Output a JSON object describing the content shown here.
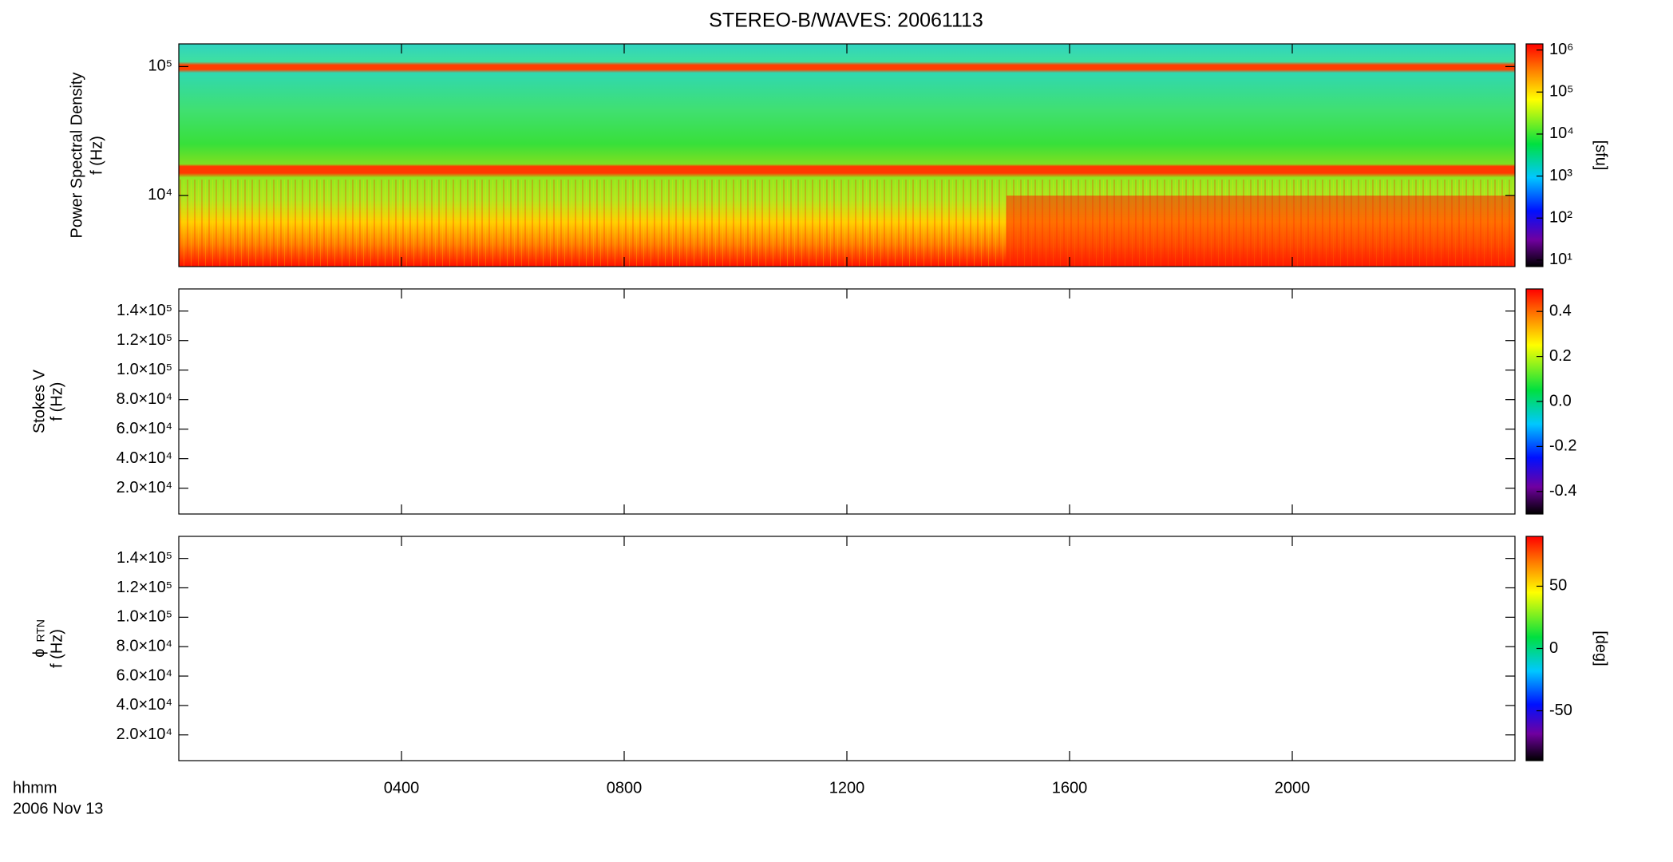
{
  "figure": {
    "title": "STEREO-B/WAVES: 20061113",
    "xlabel": "hhmm",
    "date": "2006 Nov 13",
    "xlim": [
      0,
      24
    ],
    "xticks": [
      {
        "value": 4,
        "label": "0400"
      },
      {
        "value": 8,
        "label": "0800"
      },
      {
        "value": 12,
        "label": "1200"
      },
      {
        "value": 16,
        "label": "1600"
      },
      {
        "value": 20,
        "label": "2000"
      }
    ]
  },
  "chart_data": [
    {
      "type": "heatmap",
      "ylabel": "Power Spectral Density",
      "ylabel2": "f (Hz)",
      "ylog": true,
      "ylim": [
        2800,
        150000
      ],
      "yticks": [
        {
          "value": 10000,
          "label": "10⁴"
        },
        {
          "value": 100000,
          "label": "10⁵"
        }
      ],
      "zlog": true,
      "zlim": [
        7,
        1400000
      ],
      "zlabel": "[sfu]",
      "zticks": [
        {
          "value": 10,
          "label": "10¹"
        },
        {
          "value": 100,
          "label": "10²"
        },
        {
          "value": 1000,
          "label": "10³"
        },
        {
          "value": 10000,
          "label": "10⁴"
        },
        {
          "value": 100000,
          "label": "10⁵"
        },
        {
          "value": 1000000,
          "label": "10⁶"
        }
      ]
    },
    {
      "type": "heatmap",
      "ylabel": "Stokes V",
      "ylabel2": "f (Hz)",
      "ylog": false,
      "ylim": [
        2500,
        155000
      ],
      "yticks": [
        {
          "value": 20000,
          "label": "2.0×10⁴"
        },
        {
          "value": 40000,
          "label": "4.0×10⁴"
        },
        {
          "value": 60000,
          "label": "6.0×10⁴"
        },
        {
          "value": 80000,
          "label": "8.0×10⁴"
        },
        {
          "value": 100000,
          "label": "1.0×10⁵"
        },
        {
          "value": 120000,
          "label": "1.2×10⁵"
        },
        {
          "value": 140000,
          "label": "1.4×10⁵"
        }
      ],
      "zlog": false,
      "zlim": [
        -0.5,
        0.5
      ],
      "zticks": [
        -0.4,
        -0.2,
        {
          "value": 0,
          "label": "0.0"
        },
        0.2,
        0.4
      ]
    },
    {
      "type": "heatmap",
      "ylabel": "ϕ",
      "ylabel_sub": "RTN",
      "ylabel2": "f (Hz)",
      "ylog": false,
      "ylim": [
        2500,
        155000
      ],
      "yticks": [
        {
          "value": 20000,
          "label": "2.0×10⁴"
        },
        {
          "value": 40000,
          "label": "4.0×10⁴"
        },
        {
          "value": 60000,
          "label": "6.0×10⁴"
        },
        {
          "value": 80000,
          "label": "8.0×10⁴"
        },
        {
          "value": 100000,
          "label": "1.0×10⁵"
        },
        {
          "value": 120000,
          "label": "1.2×10⁵"
        },
        {
          "value": 140000,
          "label": "1.4×10⁵"
        }
      ],
      "zlog": false,
      "zlim": [
        -90,
        90
      ],
      "zlabel": "[deg]",
      "zticks": [
        -50,
        0,
        50
      ]
    }
  ]
}
